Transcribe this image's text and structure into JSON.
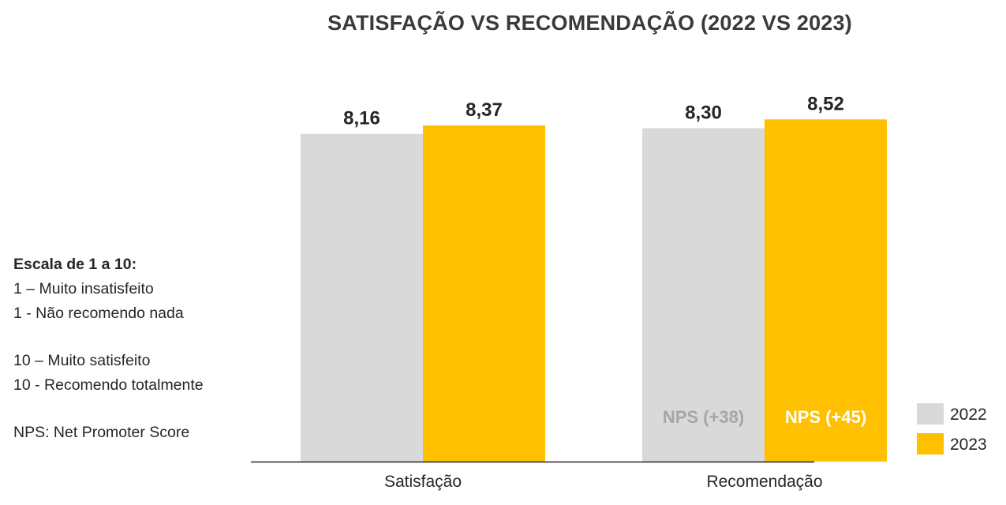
{
  "chart_data": {
    "type": "bar",
    "title": "SATISFAÇÃO VS RECOMENDAÇÃO (2022 VS 2023)",
    "xlabel": "",
    "ylabel": "",
    "categories": [
      "Satisfação",
      "Recomendação"
    ],
    "series": [
      {
        "name": "2022",
        "color": "#d9d9d9",
        "values": [
          8.16,
          8.3
        ],
        "labels": [
          "8,16",
          "8,30"
        ]
      },
      {
        "name": "2023",
        "color": "#ffc000",
        "values": [
          8.37,
          8.52
        ],
        "labels": [
          "8,37",
          "8,52"
        ]
      }
    ],
    "annotations": [
      {
        "text": "NPS (+38)",
        "category": "Recomendação",
        "series": "2022",
        "color": "#a6a6a6"
      },
      {
        "text": "NPS (+45)",
        "category": "Recomendação",
        "series": "2023",
        "color": "#ffffff"
      }
    ],
    "ylim": [
      0,
      10
    ],
    "grid": false,
    "legend": "bottom-right"
  },
  "notes": {
    "heading": "Escala de 1 a 10:",
    "lines_low": [
      "1 – Muito insatisfeito",
      "1 - Não recomendo nada"
    ],
    "lines_high": [
      "10 – Muito satisfeito",
      "10 - Recomendo totalmente"
    ],
    "nps_note": "NPS: Net Promoter Score"
  }
}
